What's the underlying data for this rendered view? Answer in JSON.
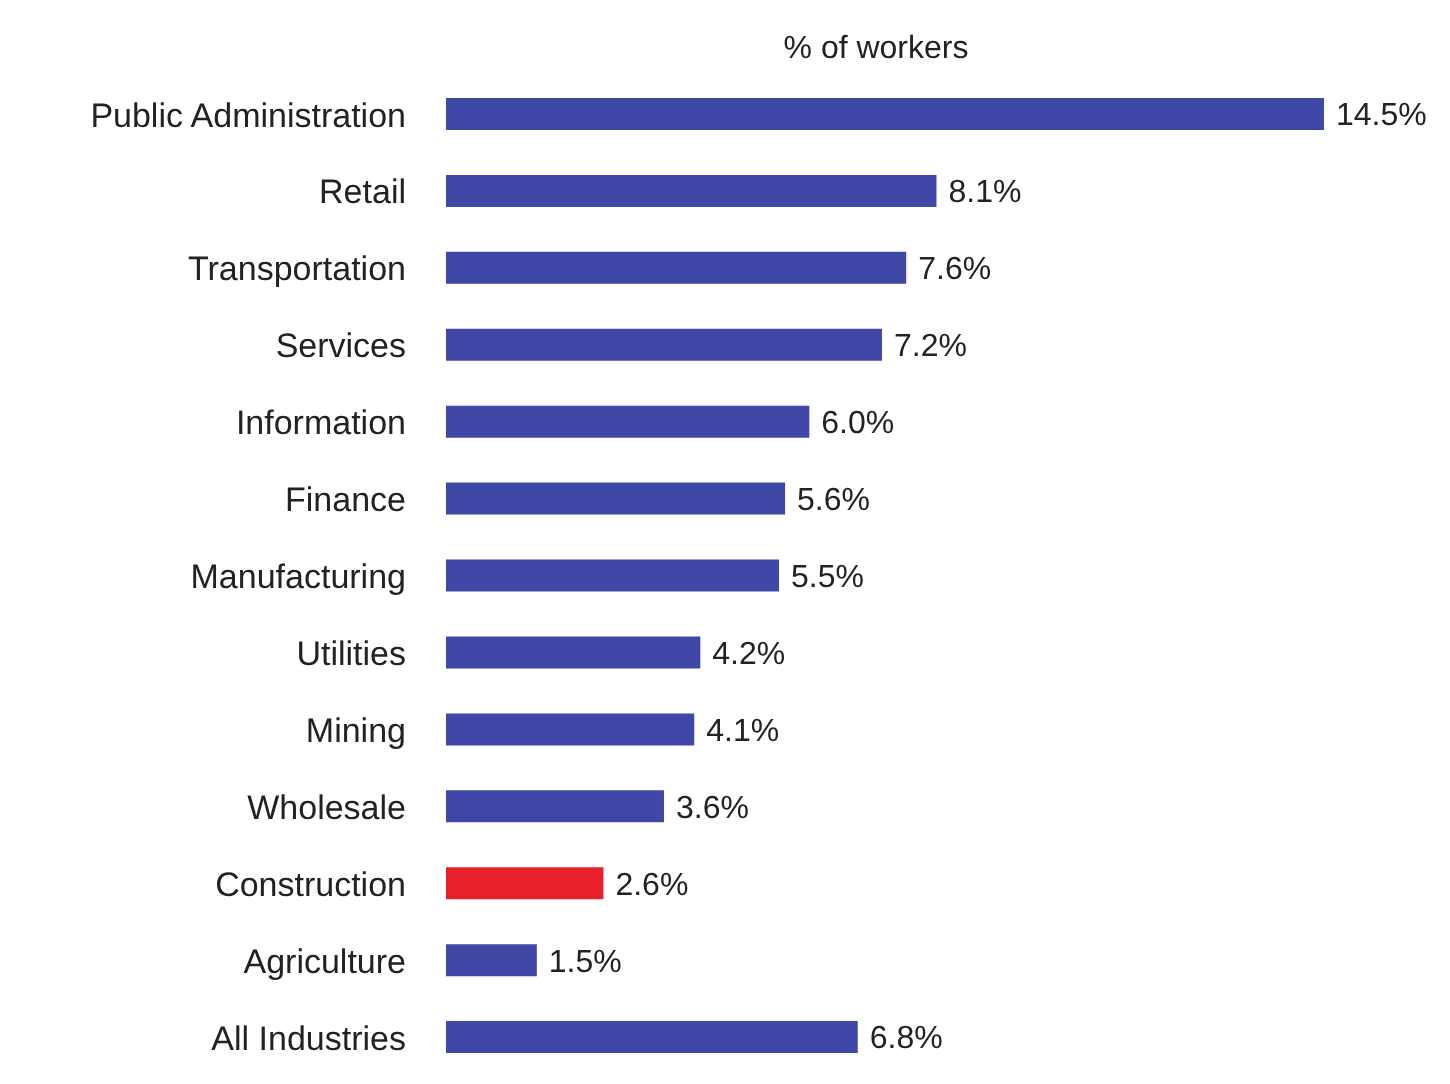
{
  "chart_data": {
    "type": "bar",
    "orientation": "horizontal",
    "title": "% of workers",
    "categories": [
      "Public Administration",
      "Retail",
      "Transportation",
      "Services",
      "Information",
      "Finance",
      "Manufacturing",
      "Utilities",
      "Mining",
      "Wholesale",
      "Construction",
      "Agriculture",
      "All Industries"
    ],
    "values": [
      14.5,
      8.1,
      7.6,
      7.2,
      6.0,
      5.6,
      5.5,
      4.2,
      4.1,
      3.6,
      2.6,
      1.5,
      6.8
    ],
    "value_labels": [
      "14.5%",
      "8.1%",
      "7.6%",
      "7.2%",
      "6.0%",
      "5.6%",
      "5.5%",
      "4.2%",
      "4.1%",
      "3.6%",
      "2.6%",
      "1.5%",
      "6.8%"
    ],
    "colors": [
      "#3f48a6",
      "#3f48a6",
      "#3f48a6",
      "#3f48a6",
      "#3f48a6",
      "#3f48a6",
      "#3f48a6",
      "#3f48a6",
      "#3f48a6",
      "#3f48a6",
      "#e8202a",
      "#3f48a6",
      "#3f48a6"
    ],
    "grid": false,
    "legend": false
  }
}
